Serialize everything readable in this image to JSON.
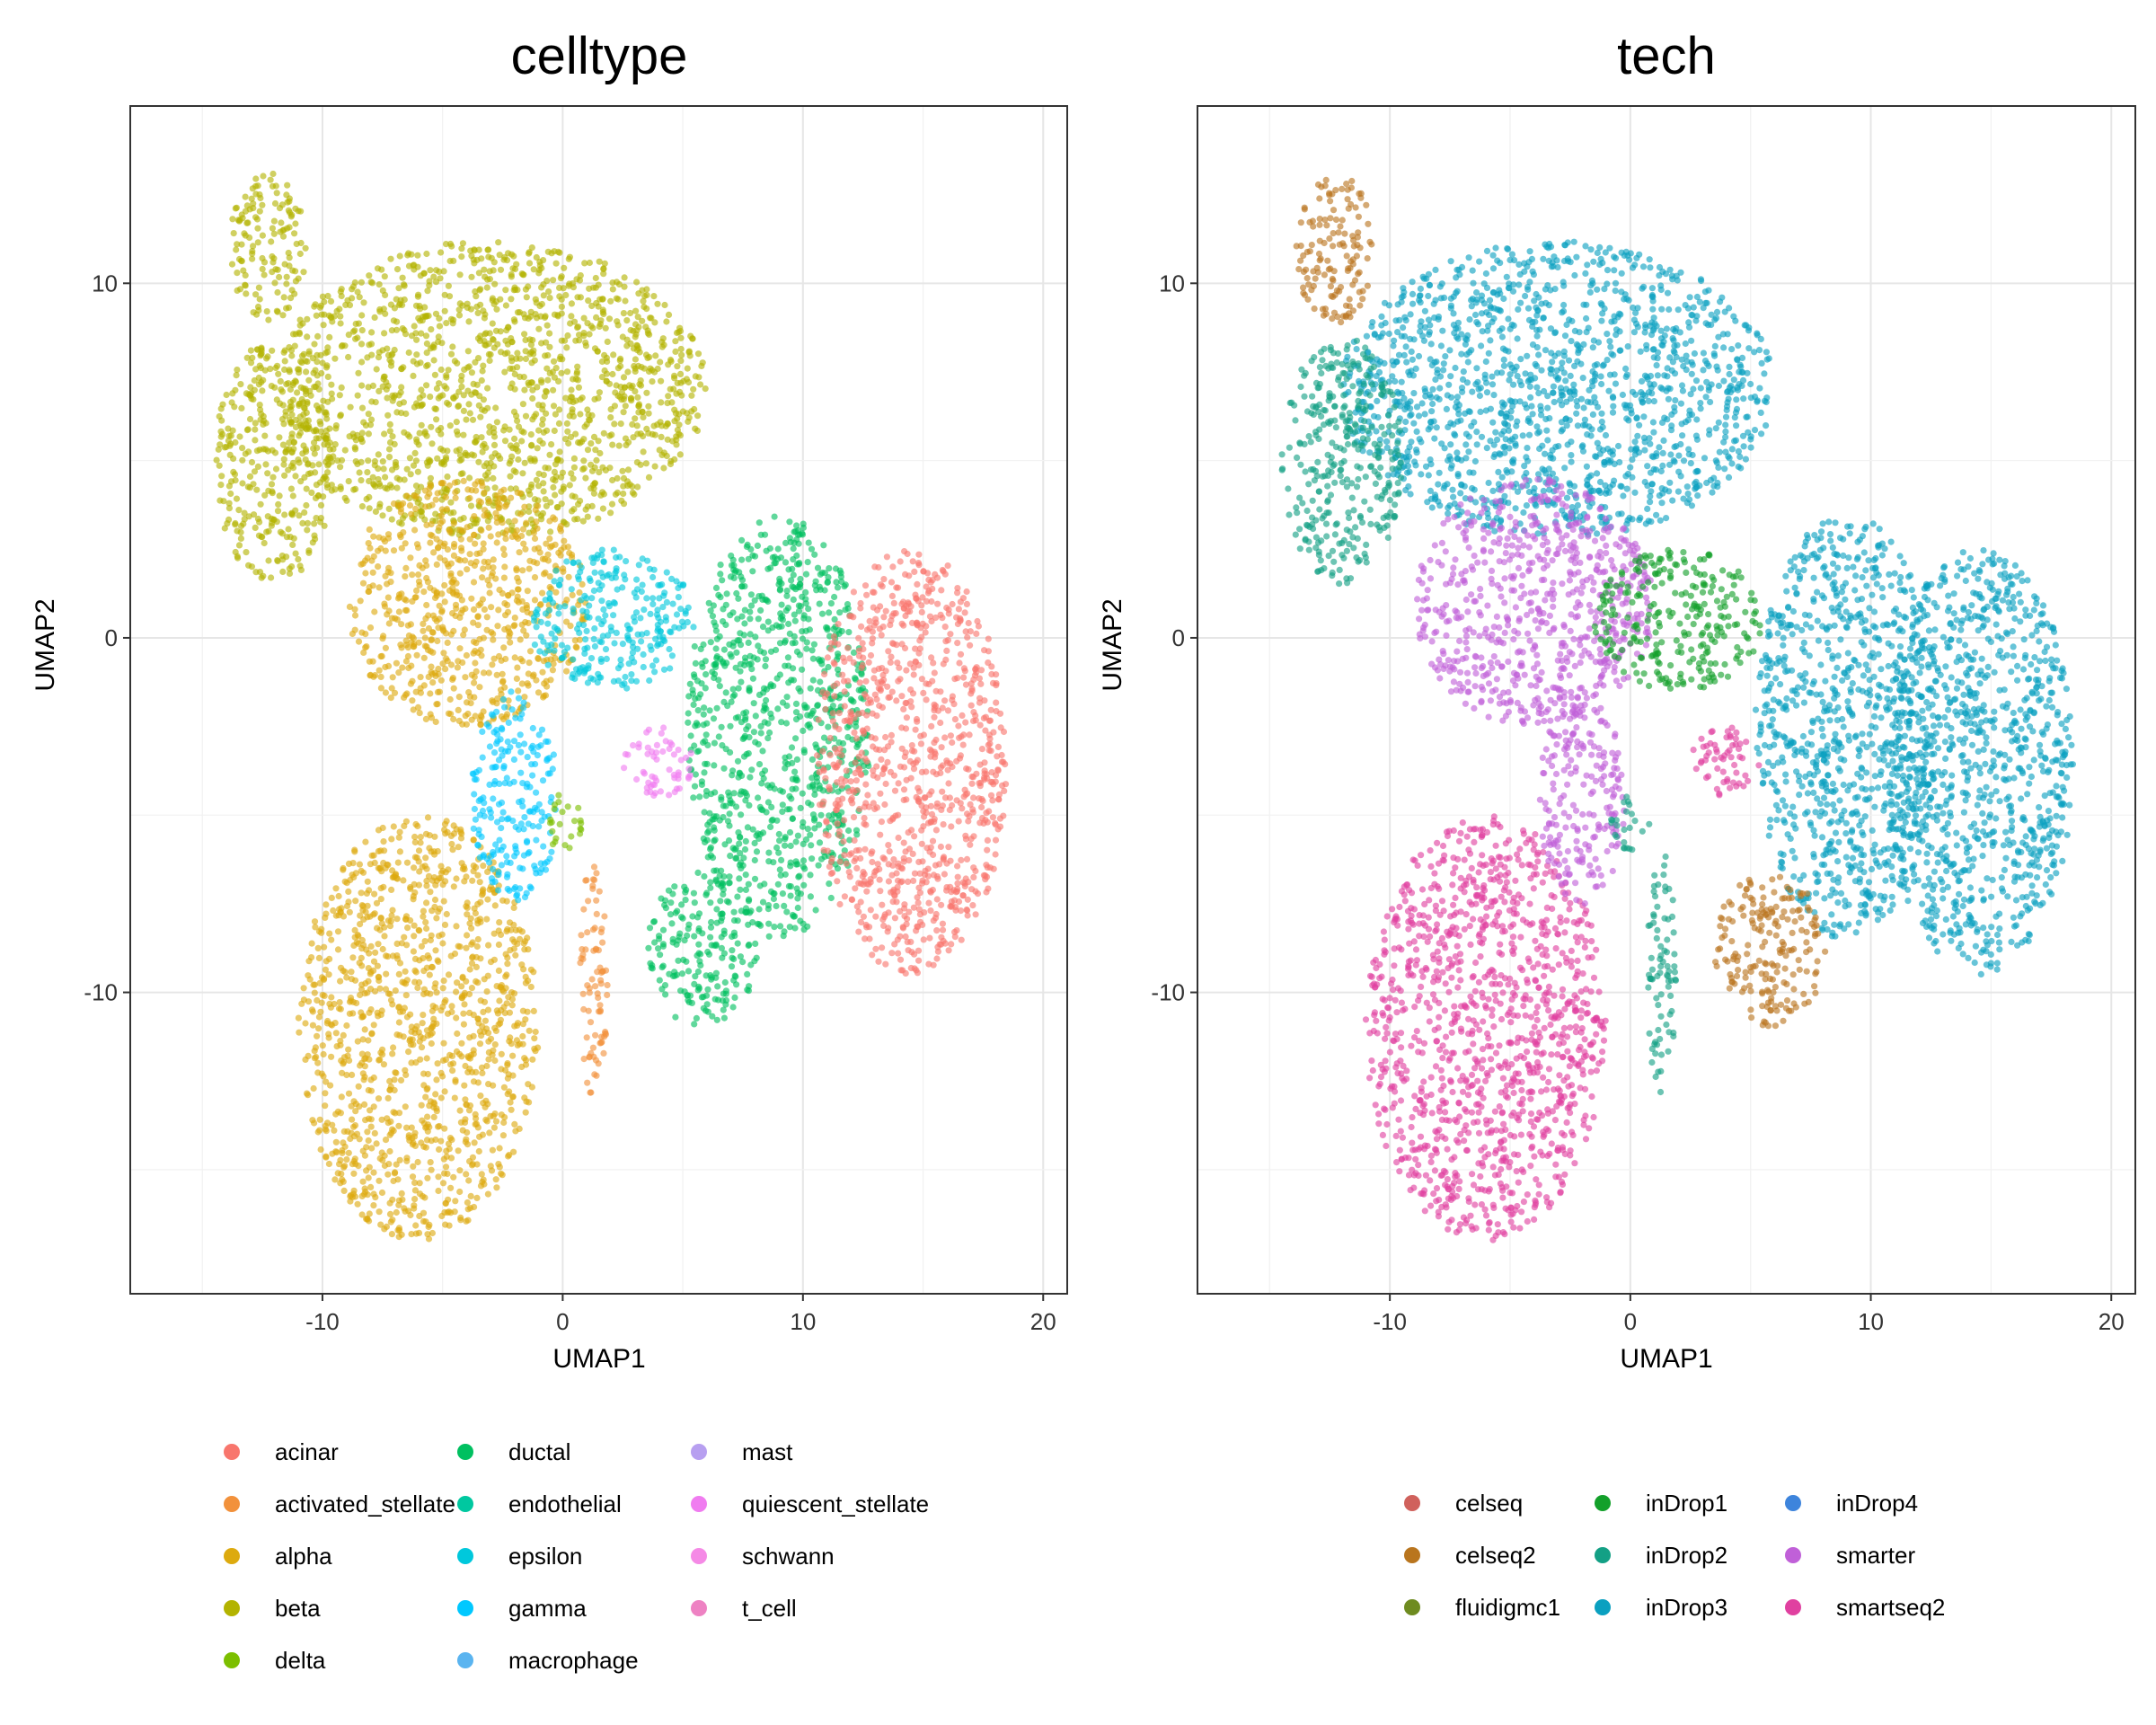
{
  "chart_data": [
    {
      "type": "scatter",
      "title": "celltype",
      "xlabel": "UMAP1",
      "ylabel": "UMAP2",
      "xlim": [
        -18,
        21
      ],
      "ylim": [
        -18.5,
        15
      ],
      "x_ticks": [
        -10,
        0,
        10,
        20
      ],
      "y_ticks": [
        -10,
        0,
        10
      ],
      "grid": true,
      "legend_position": "bottom",
      "legend": [
        {
          "name": "acinar",
          "color": "#F8766D"
        },
        {
          "name": "activated_stellate",
          "color": "#F2913B"
        },
        {
          "name": "alpha",
          "color": "#DDAA0E"
        },
        {
          "name": "beta",
          "color": "#B3B300"
        },
        {
          "name": "delta",
          "color": "#7CBF00"
        },
        {
          "name": "ductal",
          "color": "#00C060"
        },
        {
          "name": "endothelial",
          "color": "#00C8A0"
        },
        {
          "name": "epsilon",
          "color": "#00C8DC"
        },
        {
          "name": "gamma",
          "color": "#00C8FF"
        },
        {
          "name": "macrophage",
          "color": "#5AB4F0"
        },
        {
          "name": "mast",
          "color": "#B79FF0"
        },
        {
          "name": "quiescent_stellate",
          "color": "#F07CF0"
        },
        {
          "name": "schwann",
          "color": "#F58AE6"
        },
        {
          "name": "t_cell",
          "color": "#EE82C3"
        }
      ],
      "clusters": [
        {
          "label": "beta",
          "color": "#B3B300",
          "cx": -3,
          "cy": 7,
          "rx": 9,
          "ry": 4.2
        },
        {
          "label": "beta",
          "color": "#B3B300",
          "cx": -12.3,
          "cy": 11,
          "rx": 1.6,
          "ry": 2.2
        },
        {
          "label": "beta",
          "color": "#B3B300",
          "cx": -12,
          "cy": 5,
          "rx": 2.5,
          "ry": 3.5
        },
        {
          "label": "alpha",
          "color": "#DDAA0E",
          "cx": -6,
          "cy": -11,
          "rx": 5,
          "ry": 6
        },
        {
          "label": "alpha",
          "color": "#DDAA0E",
          "cx": -4,
          "cy": 1,
          "rx": 5,
          "ry": 3.5
        },
        {
          "label": "ductal",
          "color": "#00C060",
          "cx": 9,
          "cy": -2.5,
          "rx": 3.8,
          "ry": 6
        },
        {
          "label": "ductal",
          "color": "#00C060",
          "cx": 5.8,
          "cy": -8.8,
          "rx": 2.3,
          "ry": 2.2
        },
        {
          "label": "acinar",
          "color": "#F8766D",
          "cx": 14.5,
          "cy": -3.5,
          "rx": 4,
          "ry": 6
        },
        {
          "label": "gamma",
          "color": "#00C8FF",
          "cx": -2,
          "cy": -4.5,
          "rx": 1.8,
          "ry": 3
        },
        {
          "label": "epsilon",
          "color": "#00C8DC",
          "cx": 2,
          "cy": 0.5,
          "rx": 3.5,
          "ry": 2
        },
        {
          "label": "delta",
          "color": "#7CBF00",
          "cx": 0,
          "cy": -5.2,
          "rx": 0.8,
          "ry": 0.8
        },
        {
          "label": "activated_stellate",
          "color": "#F2913B",
          "cx": 1.3,
          "cy": -9.5,
          "rx": 0.6,
          "ry": 3.5
        },
        {
          "label": "quiescent_stellate",
          "color": "#F07CF0",
          "cx": 4,
          "cy": -3.5,
          "rx": 1.5,
          "ry": 1
        }
      ]
    },
    {
      "type": "scatter",
      "title": "tech",
      "xlabel": "UMAP1",
      "ylabel": "UMAP2",
      "xlim": [
        -18,
        21
      ],
      "ylim": [
        -18.5,
        15
      ],
      "x_ticks": [
        -10,
        0,
        10,
        20
      ],
      "y_ticks": [
        -10,
        0,
        10
      ],
      "grid": true,
      "legend_position": "bottom",
      "legend": [
        {
          "name": "celseq",
          "color": "#D0615C"
        },
        {
          "name": "celseq2",
          "color": "#B9751E"
        },
        {
          "name": "fluidigmc1",
          "color": "#6E8B20"
        },
        {
          "name": "inDrop1",
          "color": "#13A02A"
        },
        {
          "name": "inDrop2",
          "color": "#13A085"
        },
        {
          "name": "inDrop3",
          "color": "#0AA0C0"
        },
        {
          "name": "inDrop4",
          "color": "#3D84DC"
        },
        {
          "name": "smarter",
          "color": "#C060D8"
        },
        {
          "name": "smartseq2",
          "color": "#E040A0"
        }
      ],
      "clusters": [
        {
          "label": "inDrop3",
          "color": "#0AA0C0",
          "cx": -3,
          "cy": 7,
          "rx": 9,
          "ry": 4.2
        },
        {
          "label": "celseq2",
          "color": "#B9751E",
          "cx": -12.3,
          "cy": 11,
          "rx": 1.6,
          "ry": 2.2
        },
        {
          "label": "inDrop2",
          "color": "#13A085",
          "cx": -12,
          "cy": 5,
          "rx": 2.5,
          "ry": 3.5
        },
        {
          "label": "smartseq2",
          "color": "#E040A0",
          "cx": -6,
          "cy": -11,
          "rx": 5,
          "ry": 6
        },
        {
          "label": "smarter",
          "color": "#C060D8",
          "cx": -4,
          "cy": 1,
          "rx": 5,
          "ry": 3.5
        },
        {
          "label": "inDrop3",
          "color": "#0AA0C0",
          "cx": 9,
          "cy": -2.5,
          "rx": 3.8,
          "ry": 6
        },
        {
          "label": "celseq2",
          "color": "#B9751E",
          "cx": 5.8,
          "cy": -8.8,
          "rx": 2.3,
          "ry": 2.2
        },
        {
          "label": "inDrop3",
          "color": "#0AA0C0",
          "cx": 14.5,
          "cy": -3.5,
          "rx": 4,
          "ry": 6
        },
        {
          "label": "smarter",
          "color": "#C060D8",
          "cx": -2,
          "cy": -4.5,
          "rx": 1.8,
          "ry": 3
        },
        {
          "label": "inDrop1",
          "color": "#13A02A",
          "cx": 2,
          "cy": 0.5,
          "rx": 3.5,
          "ry": 2
        },
        {
          "label": "inDrop2",
          "color": "#13A085",
          "cx": 0,
          "cy": -5.2,
          "rx": 0.8,
          "ry": 0.8
        },
        {
          "label": "inDrop2",
          "color": "#13A085",
          "cx": 1.3,
          "cy": -9.5,
          "rx": 0.6,
          "ry": 3.5
        },
        {
          "label": "smartseq2",
          "color": "#E040A0",
          "cx": 4,
          "cy": -3.5,
          "rx": 1.5,
          "ry": 1
        }
      ]
    }
  ]
}
